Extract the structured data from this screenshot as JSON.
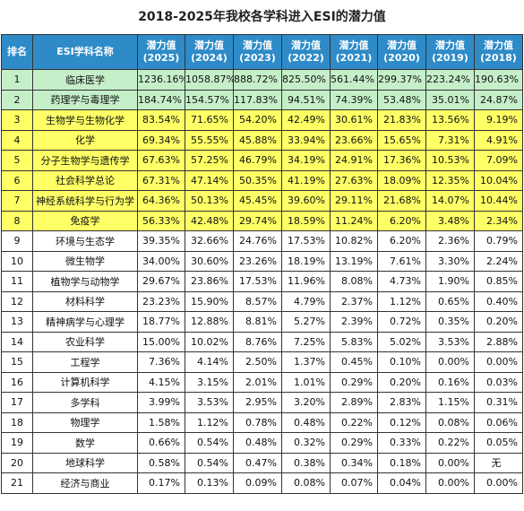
{
  "title": "2018-2025年我校各学科进入ESI的潜力值",
  "header": {
    "rank": "排名",
    "subject": "ESI学科名称",
    "years": [
      {
        "label": "潜力值",
        "year": "(2025)"
      },
      {
        "label": "潜力值",
        "year": "(2024)"
      },
      {
        "label": "潜力值",
        "year": "(2023)"
      },
      {
        "label": "潜力值",
        "year": "(2022)"
      },
      {
        "label": "潜力值",
        "year": "(2021)"
      },
      {
        "label": "潜力值",
        "year": "(2020)"
      },
      {
        "label": "潜力值",
        "year": "(2019)"
      },
      {
        "label": "潜力值",
        "year": "(2018)"
      }
    ]
  },
  "colors": {
    "header": "#2e8bc8",
    "entered": "#c5efc9",
    "near": "#ffff66"
  },
  "rows": [
    {
      "rank": "1",
      "subject": "临床医学",
      "tier": "green",
      "values": [
        "1236.16%",
        "1058.87%",
        "888.72%",
        "825.50%",
        "561.44%",
        "299.37%",
        "223.24%",
        "190.63%"
      ]
    },
    {
      "rank": "2",
      "subject": "药理学与毒理学",
      "tier": "green",
      "values": [
        "184.74%",
        "154.57%",
        "117.83%",
        "94.51%",
        "74.39%",
        "53.48%",
        "35.01%",
        "24.87%"
      ]
    },
    {
      "rank": "3",
      "subject": "生物学与生物化学",
      "tier": "yellow",
      "values": [
        "83.54%",
        "71.65%",
        "54.20%",
        "42.49%",
        "30.61%",
        "21.83%",
        "13.56%",
        "9.19%"
      ]
    },
    {
      "rank": "4",
      "subject": "化学",
      "tier": "yellow",
      "values": [
        "69.34%",
        "55.55%",
        "45.88%",
        "33.94%",
        "23.66%",
        "15.65%",
        "7.31%",
        "4.91%"
      ]
    },
    {
      "rank": "5",
      "subject": "分子生物学与遗传学",
      "tier": "yellow",
      "values": [
        "67.63%",
        "57.25%",
        "46.79%",
        "34.19%",
        "24.91%",
        "17.36%",
        "10.53%",
        "7.09%"
      ]
    },
    {
      "rank": "6",
      "subject": "社会科学总论",
      "tier": "yellow",
      "values": [
        "67.31%",
        "47.14%",
        "50.35%",
        "41.19%",
        "27.63%",
        "18.09%",
        "12.35%",
        "10.04%"
      ]
    },
    {
      "rank": "7",
      "subject": "神经系统科学与行为学",
      "tier": "yellow",
      "values": [
        "64.36%",
        "50.13%",
        "45.45%",
        "39.60%",
        "29.11%",
        "21.68%",
        "14.07%",
        "10.44%"
      ]
    },
    {
      "rank": "8",
      "subject": "免疫学",
      "tier": "yellow",
      "values": [
        "56.33%",
        "42.48%",
        "29.74%",
        "18.59%",
        "11.24%",
        "6.20%",
        "3.48%",
        "2.34%"
      ]
    },
    {
      "rank": "9",
      "subject": "环境与生态学",
      "tier": "plain",
      "values": [
        "39.35%",
        "32.66%",
        "24.76%",
        "17.53%",
        "10.82%",
        "6.20%",
        "2.36%",
        "0.79%"
      ]
    },
    {
      "rank": "10",
      "subject": "微生物学",
      "tier": "plain",
      "values": [
        "34.00%",
        "30.60%",
        "23.26%",
        "18.19%",
        "13.19%",
        "7.61%",
        "3.30%",
        "2.24%"
      ]
    },
    {
      "rank": "11",
      "subject": "植物学与动物学",
      "tier": "plain",
      "values": [
        "29.67%",
        "23.86%",
        "17.53%",
        "11.96%",
        "8.08%",
        "4.73%",
        "1.90%",
        "0.85%"
      ]
    },
    {
      "rank": "12",
      "subject": "材料科学",
      "tier": "plain",
      "values": [
        "23.23%",
        "15.90%",
        "8.57%",
        "4.79%",
        "2.37%",
        "1.12%",
        "0.65%",
        "0.40%"
      ]
    },
    {
      "rank": "13",
      "subject": "精神病学与心理学",
      "tier": "plain",
      "values": [
        "18.77%",
        "12.88%",
        "8.81%",
        "5.27%",
        "2.39%",
        "0.72%",
        "0.35%",
        "0.20%"
      ]
    },
    {
      "rank": "14",
      "subject": "农业科学",
      "tier": "plain",
      "values": [
        "15.00%",
        "10.02%",
        "8.76%",
        "7.25%",
        "5.83%",
        "5.02%",
        "3.53%",
        "2.88%"
      ]
    },
    {
      "rank": "15",
      "subject": "工程学",
      "tier": "plain",
      "values": [
        "7.36%",
        "4.14%",
        "2.50%",
        "1.37%",
        "0.45%",
        "0.10%",
        "0.00%",
        "0.00%"
      ]
    },
    {
      "rank": "16",
      "subject": "计算机科学",
      "tier": "plain",
      "values": [
        "4.15%",
        "3.15%",
        "2.01%",
        "1.01%",
        "0.29%",
        "0.20%",
        "0.16%",
        "0.03%"
      ]
    },
    {
      "rank": "17",
      "subject": "多学科",
      "tier": "plain",
      "values": [
        "3.99%",
        "3.53%",
        "2.95%",
        "3.20%",
        "2.89%",
        "2.83%",
        "1.15%",
        "0.31%"
      ]
    },
    {
      "rank": "18",
      "subject": "物理学",
      "tier": "plain",
      "values": [
        "1.58%",
        "1.12%",
        "0.78%",
        "0.48%",
        "0.22%",
        "0.12%",
        "0.08%",
        "0.06%"
      ]
    },
    {
      "rank": "19",
      "subject": "数学",
      "tier": "plain",
      "values": [
        "0.66%",
        "0.54%",
        "0.48%",
        "0.32%",
        "0.29%",
        "0.33%",
        "0.22%",
        "0.05%"
      ]
    },
    {
      "rank": "20",
      "subject": "地球科学",
      "tier": "plain",
      "values": [
        "0.58%",
        "0.54%",
        "0.47%",
        "0.38%",
        "0.34%",
        "0.18%",
        "0.00%",
        "无"
      ]
    },
    {
      "rank": "21",
      "subject": "经济与商业",
      "tier": "plain",
      "values": [
        "0.17%",
        "0.13%",
        "0.09%",
        "0.08%",
        "0.07%",
        "0.04%",
        "0.00%",
        "0.00%"
      ]
    }
  ]
}
